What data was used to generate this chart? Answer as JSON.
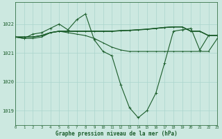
{
  "title": "Graphe pression niveau de la mer (hPa)",
  "background_color": "#cce8e0",
  "grid_color": "#aad4cc",
  "line_color": "#1a5c2a",
  "xlim": [
    0,
    23
  ],
  "ylim": [
    1018.5,
    1022.75
  ],
  "yticks": [
    1019,
    1020,
    1021,
    1022
  ],
  "xtick_labels": [
    "0",
    "1",
    "2",
    "3",
    "4",
    "5",
    "6",
    "7",
    "8",
    "9",
    "10",
    "11",
    "12",
    "13",
    "14",
    "15",
    "16",
    "17",
    "18",
    "19",
    "20",
    "21",
    "22",
    "23"
  ],
  "series1_x": [
    0,
    1,
    2,
    3,
    4,
    5,
    6,
    7,
    8,
    9,
    10,
    11,
    12,
    13,
    14,
    15,
    16,
    17,
    18,
    19,
    20,
    21,
    22,
    23
  ],
  "series1_y": [
    1021.55,
    1021.55,
    1021.55,
    1021.6,
    1021.7,
    1021.75,
    1021.75,
    1021.75,
    1021.75,
    1021.75,
    1021.75,
    1021.75,
    1021.77,
    1021.78,
    1021.8,
    1021.82,
    1021.85,
    1021.88,
    1021.9,
    1021.9,
    1021.75,
    1021.75,
    1021.6,
    1021.6
  ],
  "series2_x": [
    0,
    1,
    2,
    3,
    4,
    5,
    6,
    7,
    8,
    9,
    10,
    11,
    12,
    13,
    14,
    15,
    16,
    17,
    18,
    19,
    20,
    21,
    22,
    23
  ],
  "series2_y": [
    1021.55,
    1021.5,
    1021.5,
    1021.55,
    1021.7,
    1021.75,
    1021.7,
    1021.65,
    1021.6,
    1021.5,
    1021.35,
    1021.2,
    1021.1,
    1021.05,
    1021.05,
    1021.05,
    1021.05,
    1021.05,
    1021.05,
    1021.05,
    1021.05,
    1021.05,
    1021.05,
    1021.5
  ],
  "series3_x": [
    0,
    1,
    2,
    3,
    4,
    5,
    6,
    7,
    8,
    9,
    10,
    11,
    12,
    13,
    14,
    15,
    16,
    17,
    18,
    19,
    20,
    21,
    22,
    23
  ],
  "series3_y": [
    1021.55,
    1021.5,
    1021.65,
    1021.7,
    1021.85,
    1022.0,
    1021.8,
    1022.15,
    1022.35,
    1021.45,
    1021.05,
    1020.9,
    1019.9,
    1019.1,
    1018.75,
    1019.0,
    1019.6,
    1020.65,
    1021.75,
    1021.8,
    1021.85,
    1021.1,
    1021.6,
    1021.6
  ]
}
